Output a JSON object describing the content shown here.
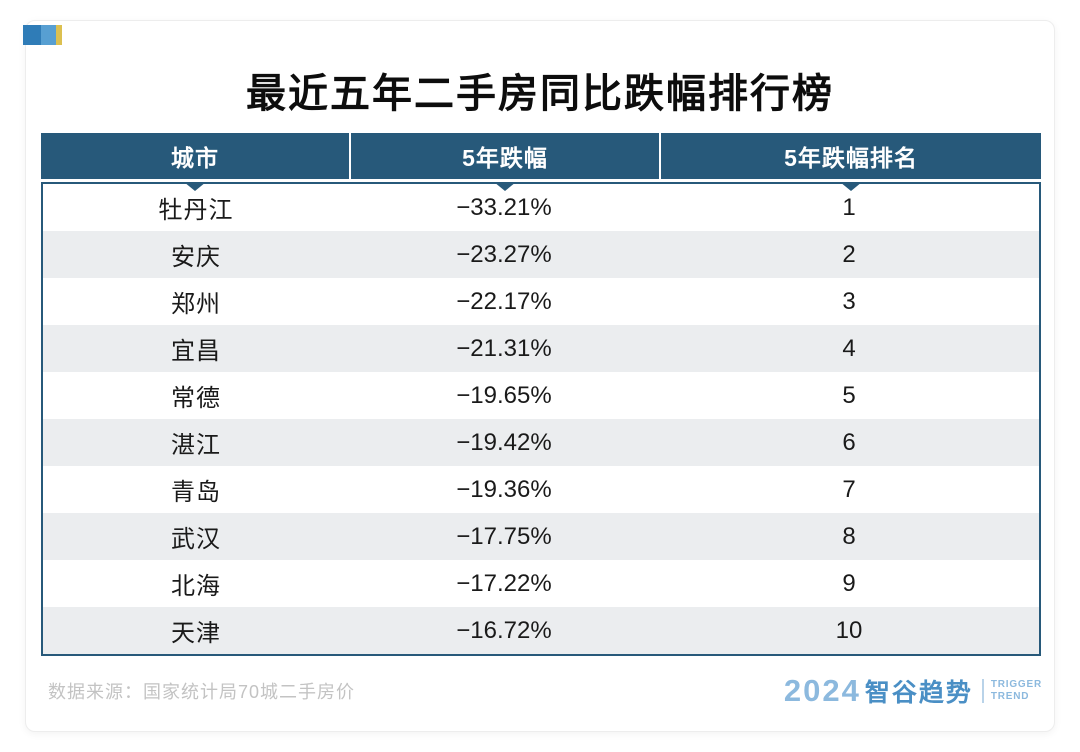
{
  "page": {
    "title": "最近五年二手房同比跌幅排行榜"
  },
  "chart_data": {
    "type": "table",
    "title": "最近五年二手房同比跌幅排行榜",
    "columns": [
      "城市",
      "5年跌幅",
      "5年跌幅排名"
    ],
    "rows": [
      [
        "牡丹江",
        "−33.21%",
        "1"
      ],
      [
        "安庆",
        "−23.27%",
        "2"
      ],
      [
        "郑州",
        "−22.17%",
        "3"
      ],
      [
        "宜昌",
        "−21.31%",
        "4"
      ],
      [
        "常德",
        "−19.65%",
        "5"
      ],
      [
        "湛江",
        "−19.42%",
        "6"
      ],
      [
        "青岛",
        "−19.36%",
        "7"
      ],
      [
        "武汉",
        "−17.75%",
        "8"
      ],
      [
        "北海",
        "−17.22%",
        "9"
      ],
      [
        "天津",
        "−16.72%",
        "10"
      ]
    ],
    "values_pct": [
      -33.21,
      -23.27,
      -22.17,
      -21.31,
      -19.65,
      -19.42,
      -19.36,
      -17.75,
      -17.22,
      -16.72
    ],
    "source": "数据来源：国家统计局70城二手房价"
  },
  "table": {
    "columns": [
      "城市",
      "5年跌幅",
      "5年跌幅排名"
    ],
    "rows": [
      {
        "city": "牡丹江",
        "drop": "−33.21%",
        "rank": "1"
      },
      {
        "city": "安庆",
        "drop": "−23.27%",
        "rank": "2"
      },
      {
        "city": "郑州",
        "drop": "−22.17%",
        "rank": "3"
      },
      {
        "city": "宜昌",
        "drop": "−21.31%",
        "rank": "4"
      },
      {
        "city": "常德",
        "drop": "−19.65%",
        "rank": "5"
      },
      {
        "city": "湛江",
        "drop": "−19.42%",
        "rank": "6"
      },
      {
        "city": "青岛",
        "drop": "−19.36%",
        "rank": "7"
      },
      {
        "city": "武汉",
        "drop": "−17.75%",
        "rank": "8"
      },
      {
        "city": "北海",
        "drop": "−17.22%",
        "rank": "9"
      },
      {
        "city": "天津",
        "drop": "−16.72%",
        "rank": "10"
      }
    ]
  },
  "footer": {
    "source": "数据来源：国家统计局70城二手房价",
    "brand": {
      "year": "2024",
      "name": "智谷趋势",
      "sub_line1": "TRIGGER",
      "sub_line2": "TREND"
    }
  },
  "colors": {
    "header_teal": "#27597A",
    "row_stripe": "#EBEDEF",
    "source_gray": "#C3C3C3",
    "brand_blue": "#4A8FC5",
    "brand_light_blue": "#8CB9DE",
    "mark_blue": "#2F7CB7",
    "mark_light_blue": "#579FD2",
    "mark_yellow": "#DCC050"
  }
}
